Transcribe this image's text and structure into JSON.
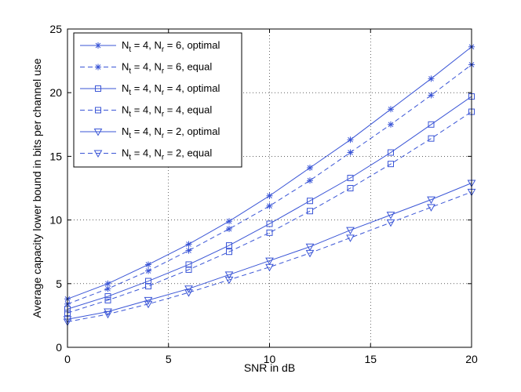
{
  "chart_data": {
    "type": "line",
    "title": "",
    "xlabel": "SNR in dB",
    "ylabel": "Average capacity lower bound in bits per channel use",
    "xlim": [
      0,
      20
    ],
    "ylim": [
      0,
      25
    ],
    "xticks": [
      0,
      5,
      10,
      15,
      20
    ],
    "yticks": [
      0,
      5,
      10,
      15,
      20,
      25
    ],
    "grid": true,
    "legend_position": "top-left",
    "x": [
      0,
      2,
      4,
      6,
      8,
      10,
      12,
      14,
      16,
      18,
      20
    ],
    "series": [
      {
        "name": "N_t = 4, N_r = 6, optimal",
        "t_sub": "t",
        "r_sub": "r",
        "nt": "4",
        "nr": "6",
        "kind": "optimal",
        "marker": "star",
        "dash": "solid",
        "color": "#3a55d6",
        "values": [
          3.8,
          5.0,
          6.5,
          8.1,
          9.9,
          11.9,
          14.1,
          16.3,
          18.7,
          21.1,
          23.6
        ]
      },
      {
        "name": "N_t = 4, N_r = 6, equal",
        "t_sub": "t",
        "r_sub": "r",
        "nt": "4",
        "nr": "6",
        "kind": "equal",
        "marker": "star",
        "dash": "dashed",
        "color": "#3a55d6",
        "values": [
          3.4,
          4.6,
          6.0,
          7.6,
          9.3,
          11.1,
          13.1,
          15.3,
          17.5,
          19.8,
          22.2
        ]
      },
      {
        "name": "N_t = 4, N_r = 4, optimal",
        "t_sub": "t",
        "r_sub": "r",
        "nt": "4",
        "nr": "4",
        "kind": "optimal",
        "marker": "square",
        "dash": "solid",
        "color": "#3a55d6",
        "values": [
          3.0,
          4.0,
          5.2,
          6.5,
          8.0,
          9.7,
          11.5,
          13.3,
          15.3,
          17.5,
          19.7
        ]
      },
      {
        "name": "N_t = 4, N_r = 4, equal",
        "t_sub": "t",
        "r_sub": "r",
        "nt": "4",
        "nr": "4",
        "kind": "equal",
        "marker": "square",
        "dash": "dashed",
        "color": "#3a55d6",
        "values": [
          2.7,
          3.7,
          4.8,
          6.1,
          7.5,
          9.0,
          10.7,
          12.5,
          14.4,
          16.4,
          18.5
        ]
      },
      {
        "name": "N_t = 4, N_r = 2, optimal",
        "t_sub": "t",
        "r_sub": "r",
        "nt": "4",
        "nr": "2",
        "kind": "optimal",
        "marker": "triangle-down",
        "dash": "solid",
        "color": "#3a55d6",
        "values": [
          2.2,
          2.8,
          3.7,
          4.6,
          5.7,
          6.8,
          7.9,
          9.2,
          10.4,
          11.6,
          12.9
        ]
      },
      {
        "name": "N_t = 4, N_r = 2, equal",
        "t_sub": "t",
        "r_sub": "r",
        "nt": "4",
        "nr": "2",
        "kind": "equal",
        "marker": "triangle-down",
        "dash": "dashed",
        "color": "#3a55d6",
        "values": [
          2.0,
          2.6,
          3.4,
          4.3,
          5.3,
          6.3,
          7.4,
          8.6,
          9.8,
          11.0,
          12.2
        ]
      }
    ]
  }
}
